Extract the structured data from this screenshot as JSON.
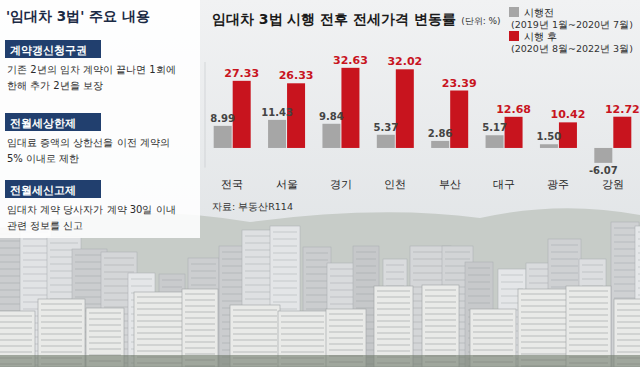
{
  "chart_data": {
    "type": "bar",
    "title": "임대차 3법 시행 전후 전세가격 변동률",
    "subtitle": "(단위: %)",
    "source": "자료: 부동산R114",
    "categories": [
      "전국",
      "서울",
      "경기",
      "인천",
      "부산",
      "대구",
      "광주",
      "강원"
    ],
    "series": [
      {
        "name": "시행전",
        "period": "(2019년 1월~2020년 7월)",
        "color": "#a6a6a6",
        "values": [
          8.99,
          11.43,
          9.84,
          5.37,
          2.86,
          5.17,
          1.5,
          -6.07
        ],
        "value_labels": [
          "8.99",
          "11.43",
          "9.84",
          "5.37",
          "2.86",
          "5.17",
          "1.50",
          "-6.07"
        ]
      },
      {
        "name": "시행 후",
        "period": "(2020년 8월~2022년 3월)",
        "color": "#c8141e",
        "values": [
          27.33,
          26.33,
          32.63,
          32.02,
          23.39,
          12.68,
          10.42,
          12.72
        ]
      }
    ],
    "ylim": [
      -8,
      35
    ],
    "data_labels": true,
    "tick_labels": "x",
    "grid": false,
    "legend": "top-right"
  },
  "sidebar": {
    "title": "'임대차 3법' 주요 내용",
    "items": [
      {
        "label": "계약갱신청구권",
        "text": [
          "기존 2년의 임차 계약이 끝나면 1회에",
          "한해 추가 2년을 보장"
        ]
      },
      {
        "label": "전월세상한제",
        "text": [
          "임대료 증액의 상한선을 이전 계약의",
          "5% 이내로 제한"
        ]
      },
      {
        "label": "전월세신고제",
        "text": [
          "임대차 계약 당사자가 계약 30일 이내",
          "관련 정보를 신고"
        ]
      }
    ]
  }
}
